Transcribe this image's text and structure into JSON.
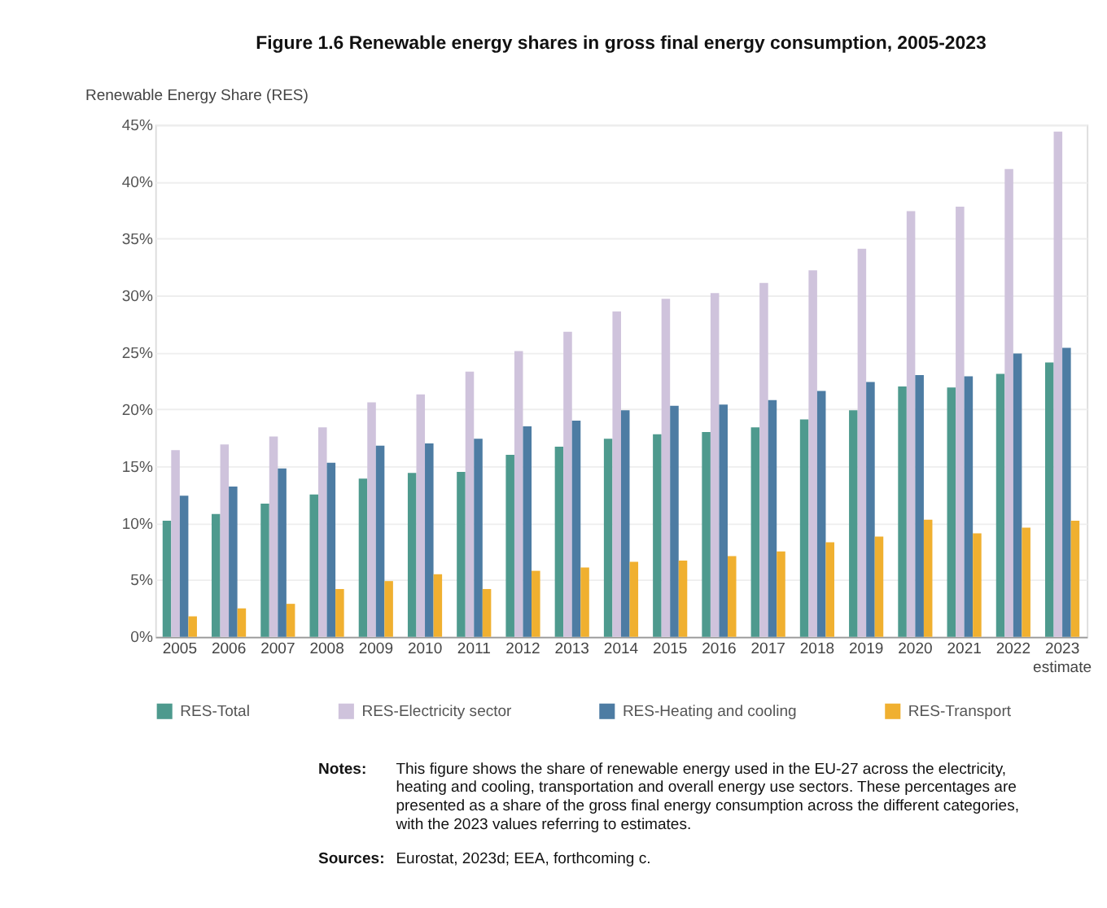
{
  "chart_data": {
    "type": "bar",
    "title": "Figure 1.6        Renewable energy shares in gross final energy consumption, 2005-2023",
    "ylabel": "Renewable Energy Share (RES)",
    "categories": [
      "2005",
      "2006",
      "2007",
      "2008",
      "2009",
      "2010",
      "2011",
      "2012",
      "2013",
      "2014",
      "2015",
      "2016",
      "2017",
      "2018",
      "2019",
      "2020",
      "2021",
      "2022",
      "2023\nestimate"
    ],
    "series": [
      {
        "name": "RES-Total",
        "color": "#4e9a8e",
        "values": [
          10.2,
          10.8,
          11.7,
          12.5,
          13.9,
          14.4,
          14.5,
          16.0,
          16.7,
          17.4,
          17.8,
          18.0,
          18.4,
          19.1,
          19.9,
          22.0,
          21.9,
          23.1,
          24.1
        ]
      },
      {
        "name": "RES-Electricity sector",
        "color": "#cfc3dc",
        "values": [
          16.4,
          16.9,
          17.6,
          18.4,
          20.6,
          21.3,
          23.3,
          25.1,
          26.8,
          28.6,
          29.7,
          30.2,
          31.1,
          32.2,
          34.1,
          37.4,
          37.8,
          41.1,
          44.4
        ]
      },
      {
        "name": "RES-Heating and cooling",
        "color": "#4d7ca3",
        "values": [
          12.4,
          13.2,
          14.8,
          15.3,
          16.8,
          17.0,
          17.4,
          18.5,
          19.0,
          19.9,
          20.3,
          20.4,
          20.8,
          21.6,
          22.4,
          23.0,
          22.9,
          24.9,
          25.4
        ]
      },
      {
        "name": "RES-Transport",
        "color": "#f0b030",
        "values": [
          1.8,
          2.5,
          2.9,
          4.2,
          4.9,
          5.5,
          4.2,
          5.8,
          6.1,
          6.6,
          6.7,
          7.1,
          7.5,
          8.3,
          8.8,
          10.3,
          9.1,
          9.6,
          10.2
        ]
      }
    ],
    "ylim": [
      0,
      45
    ],
    "yticks": [
      {
        "value": 0,
        "label": "0%"
      },
      {
        "value": 5,
        "label": "5%"
      },
      {
        "value": 10,
        "label": "10%"
      },
      {
        "value": 15,
        "label": "15%"
      },
      {
        "value": 20,
        "label": "20%"
      },
      {
        "value": 25,
        "label": "25%"
      },
      {
        "value": 30,
        "label": "30%"
      },
      {
        "value": 35,
        "label": "35%"
      },
      {
        "value": 40,
        "label": "40%"
      },
      {
        "value": 45,
        "label": "45%"
      }
    ],
    "grid": "y",
    "legend": "bottom",
    "annotations": [
      "Notes:",
      "This figure shows the share of renewable energy used in the EU-27 across the electricity, heating and cooling, transportation and overall energy use sectors. These percentages are presented as a share of the gross final energy consumption across the different categories, with the 2023 values referring to estimates.",
      "Sources:",
      "Eurostat, 2023d; EEA, forthcoming c."
    ]
  }
}
